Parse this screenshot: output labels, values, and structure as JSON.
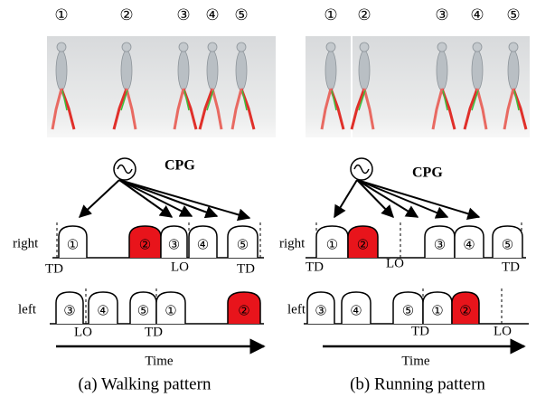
{
  "panels": [
    {
      "frame_labels": [
        "①",
        "②",
        "③",
        "④",
        "⑤"
      ],
      "cpg_label": "CPG",
      "right": {
        "label": "right",
        "humps": [
          "①",
          "②",
          "③",
          "④",
          "⑤"
        ],
        "events": [
          "TD",
          "LO",
          "TD"
        ]
      },
      "left": {
        "label": "left",
        "humps": [
          "③",
          "④",
          "⑤",
          "①",
          "②"
        ],
        "events": [
          "LO",
          "TD"
        ]
      },
      "time_label": "Time",
      "caption": "(a) Walking pattern"
    },
    {
      "frame_labels": [
        "①",
        "②",
        "③",
        "④",
        "⑤"
      ],
      "cpg_label": "CPG",
      "right": {
        "label": "right",
        "humps": [
          "①",
          "②",
          "③",
          "④",
          "⑤"
        ],
        "events": [
          "TD",
          "LO",
          "TD"
        ]
      },
      "left": {
        "label": "left",
        "humps": [
          "③",
          "④",
          "⑤",
          "①",
          "②"
        ],
        "events": [
          "TD",
          "LO"
        ]
      },
      "time_label": "Time",
      "caption": "(b) Running pattern"
    }
  ]
}
